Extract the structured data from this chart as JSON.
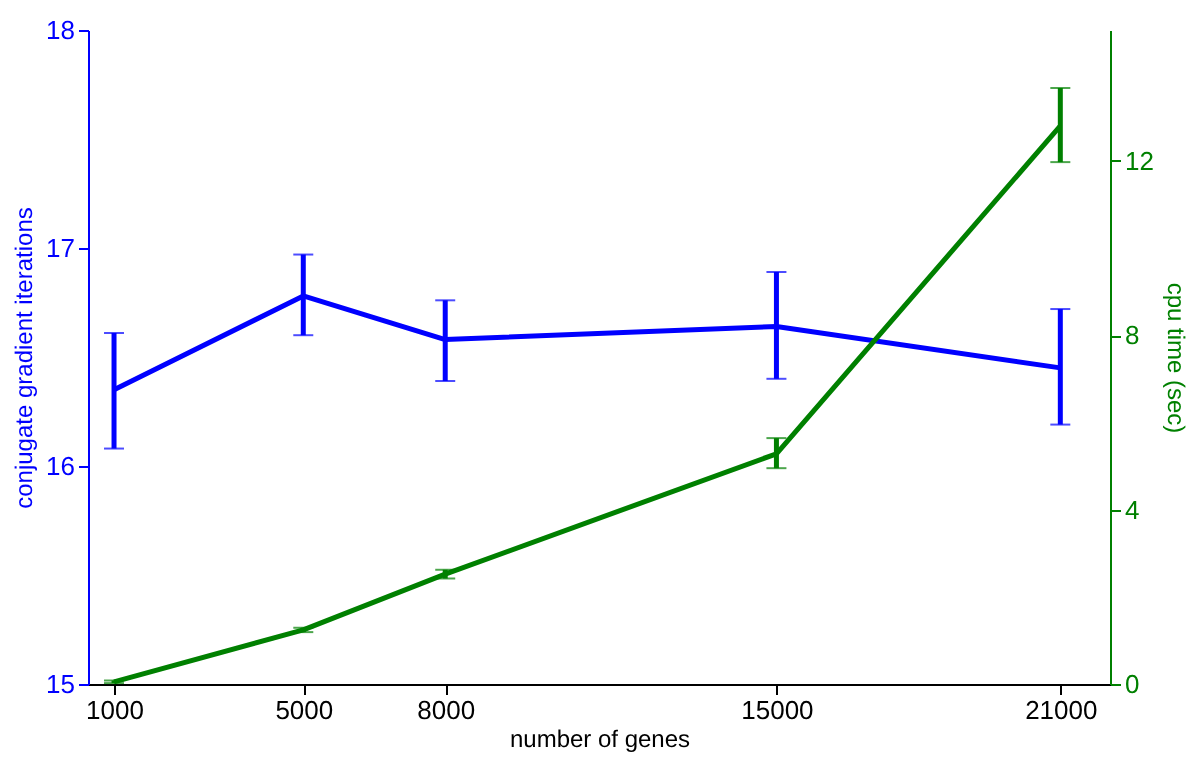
{
  "chart_data": {
    "type": "line",
    "xlabel": "number of genes",
    "ylabel": "conjugate gradient iterations",
    "y2label": "cpu time (sec)",
    "x": [
      1000,
      5000,
      8000,
      15000,
      21000
    ],
    "xlim": [
      450,
      22050
    ],
    "xticks": [
      1000,
      5000,
      8000,
      15000,
      21000
    ],
    "ylim": [
      15,
      18
    ],
    "yticks": [
      15,
      16,
      17,
      18
    ],
    "y2lim": [
      0,
      15
    ],
    "y2ticks": [
      0,
      4,
      8,
      12
    ],
    "marker": "none",
    "line_style": "solid",
    "series": [
      {
        "color": "#0000ff",
        "values": [
          16.35,
          16.78,
          16.58,
          16.64,
          16.45
        ],
        "errors": [
          [
            16.08,
            16.61
          ],
          [
            16.6,
            16.97
          ],
          [
            16.39,
            16.76
          ],
          [
            16.4,
            16.89
          ],
          [
            16.19,
            16.72
          ]
        ]
      },
      {
        "color": "#008000",
        "axis": "y2",
        "values": [
          0.05,
          1.24,
          2.52,
          5.28,
          12.8
        ],
        "errors": [
          [
            0.02,
            0.08
          ],
          [
            1.19,
            1.29
          ],
          [
            2.42,
            2.62
          ],
          [
            4.95,
            5.64
          ],
          [
            11.97,
            13.67
          ]
        ]
      }
    ]
  }
}
